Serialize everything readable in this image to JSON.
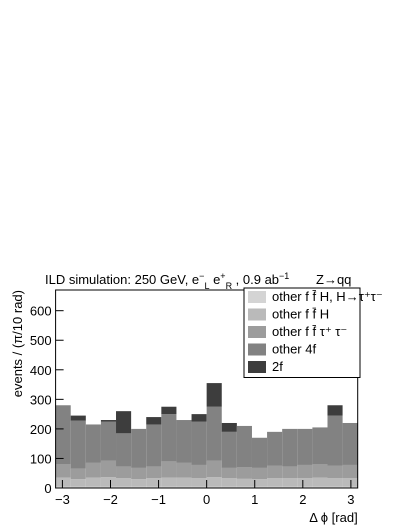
{
  "chart_data": {
    "type": "stacked_histogram",
    "title": [
      {
        "text": "ILD simulation: 250 GeV, e"
      },
      {
        "text": "−",
        "script": "sup"
      },
      {
        "text": "L",
        "script": "sub"
      },
      {
        "text": " e"
      },
      {
        "text": "+",
        "script": "sup"
      },
      {
        "text": "R",
        "script": "sub"
      },
      {
        "text": " , 0.9 ab"
      },
      {
        "text": "−1",
        "script": "sup"
      }
    ],
    "annotation": "Z→qq",
    "x_label": "Δ ϕ [rad]",
    "y_label": "events / (π/10 rad)",
    "bins": [
      -3.1416,
      -2.8274,
      -2.5133,
      -2.1991,
      -1.885,
      -1.5708,
      -1.2566,
      -0.9425,
      -0.6283,
      -0.3142,
      0,
      0.3142,
      0.6283,
      0.9425,
      1.2566,
      1.5708,
      1.885,
      2.1991,
      2.5133,
      2.8274,
      3.1416
    ],
    "series": [
      {
        "name": "other f f̄ H, H→τ⁺τ⁻",
        "color": "#d4d4d4",
        "values": [
          5,
          5,
          5,
          5,
          5,
          5,
          5,
          5,
          5,
          5,
          5,
          5,
          5,
          5,
          5,
          5,
          5,
          5,
          5,
          5
        ]
      },
      {
        "name": "other f f̄ H",
        "color": "#bababa",
        "values": [
          30,
          25,
          30,
          32,
          28,
          25,
          28,
          30,
          30,
          28,
          32,
          28,
          26,
          25,
          28,
          28,
          28,
          30,
          28,
          28
        ]
      },
      {
        "name": "other f f̄ τ⁺ τ⁻",
        "color": "#9c9c9c",
        "values": [
          45,
          35,
          50,
          55,
          40,
          38,
          40,
          55,
          50,
          45,
          55,
          35,
          40,
          38,
          42,
          40,
          45,
          45,
          42,
          45
        ]
      },
      {
        "name": "other 4f",
        "color": "#828282",
        "values": [
          200,
          163,
          130,
          133,
          112,
          132,
          142,
          160,
          145,
          147,
          183,
          122,
          139,
          102,
          115,
          127,
          122,
          125,
          170,
          142
        ]
      },
      {
        "name": "2f",
        "color": "#3d3d3d",
        "values": [
          0,
          17,
          0,
          5,
          75,
          0,
          25,
          25,
          0,
          25,
          80,
          30,
          0,
          0,
          0,
          0,
          0,
          0,
          35,
          0
        ]
      }
    ],
    "xlim": [
      -3.1416,
      3.1416
    ],
    "ylim": [
      0,
      670
    ],
    "xticks": [
      {
        "value": -3,
        "label": "−3"
      },
      {
        "value": -2,
        "label": "−2"
      },
      {
        "value": -1,
        "label": "−1"
      },
      0,
      1,
      2,
      3
    ],
    "yticks": [
      0,
      100,
      200,
      300,
      400,
      500,
      600
    ],
    "legend": "top-right"
  }
}
